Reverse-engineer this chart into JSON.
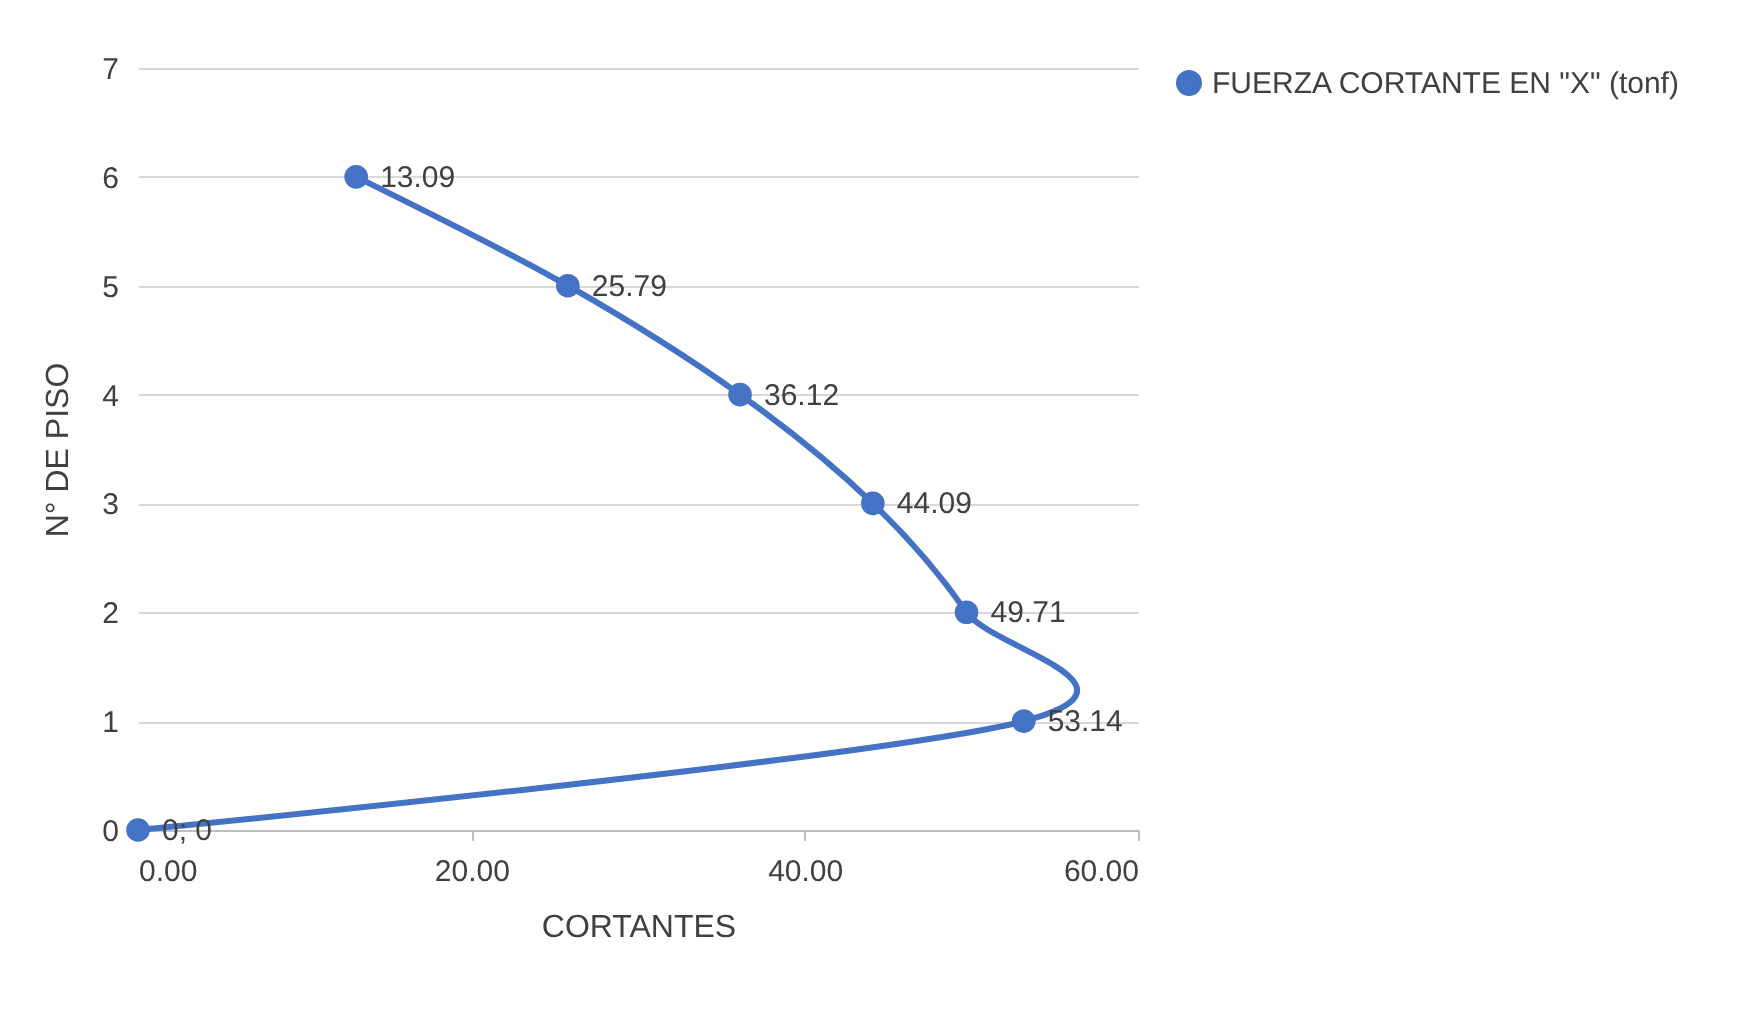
{
  "chart_data": {
    "type": "line",
    "xlabel": "CORTANTES",
    "ylabel": "N° DE PISO",
    "x": [
      0,
      53.14,
      49.71,
      44.09,
      36.12,
      25.79,
      13.09
    ],
    "series": [
      {
        "name": "FUERZA CORTANTE EN \"X\" (tonf)",
        "color": "#4472c4",
        "values": [
          0,
          1,
          2,
          3,
          4,
          5,
          6
        ]
      }
    ],
    "annotations": [
      {
        "text": "0; 0",
        "x": 0,
        "y": 0
      },
      {
        "text": "53.14",
        "x": 53.14,
        "y": 1
      },
      {
        "text": "49.71",
        "x": 49.71,
        "y": 2
      },
      {
        "text": "44.09",
        "x": 44.09,
        "y": 3
      },
      {
        "text": "36.12",
        "x": 36.12,
        "y": 4
      },
      {
        "text": "25.79",
        "x": 25.79,
        "y": 5
      },
      {
        "text": "13.09",
        "x": 13.09,
        "y": 6
      }
    ],
    "xlim": [
      0,
      60
    ],
    "xticks": [
      {
        "value": 0,
        "label": "0.00"
      },
      {
        "value": 20,
        "label": "20.00"
      },
      {
        "value": 40,
        "label": "40.00"
      },
      {
        "value": 60,
        "label": "60.00"
      }
    ],
    "ylim": [
      0,
      7
    ],
    "yticks": [
      0,
      1,
      2,
      3,
      4,
      5,
      6,
      7
    ],
    "grid": "y",
    "legend": "right",
    "marker": "circle",
    "line_style": "solid"
  }
}
